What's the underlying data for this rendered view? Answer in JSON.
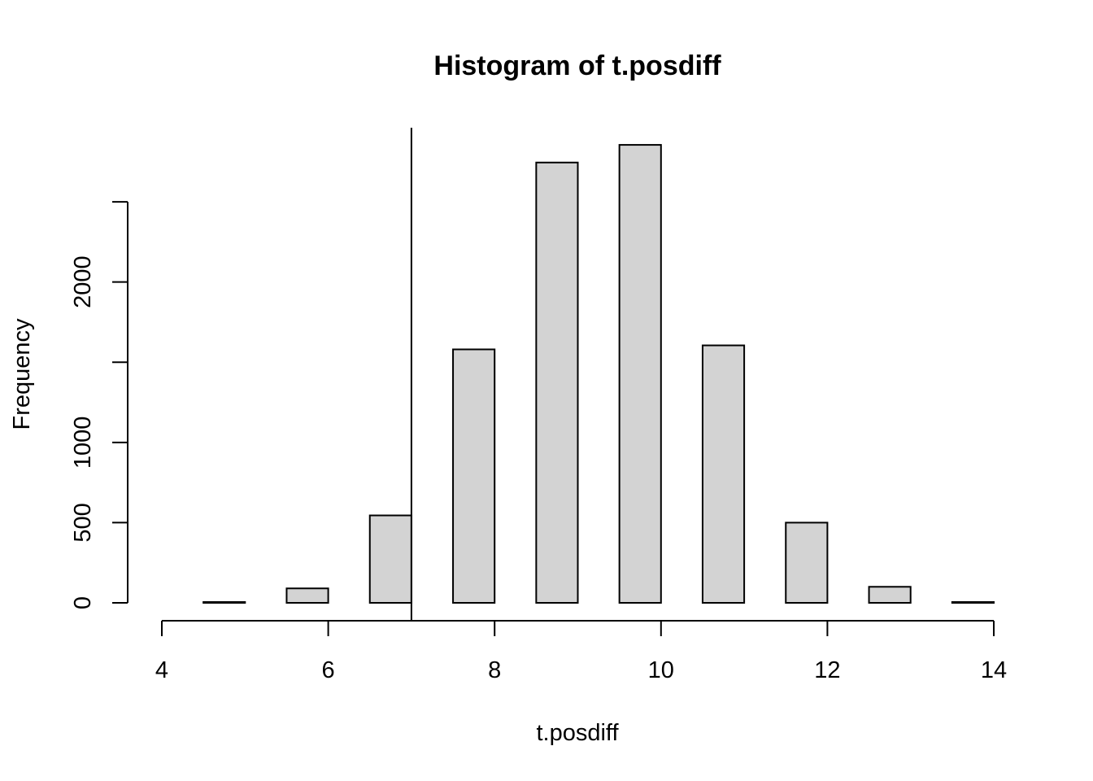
{
  "chart_data": {
    "type": "bar",
    "title": "Histogram of t.posdiff",
    "xlabel": "t.posdiff",
    "ylabel": "Frequency",
    "bin_width": 0.5,
    "bins": [
      {
        "start": 4.0,
        "end": 4.5,
        "count": 0
      },
      {
        "start": 4.5,
        "end": 5.0,
        "count": 5
      },
      {
        "start": 5.0,
        "end": 5.5,
        "count": 0
      },
      {
        "start": 5.5,
        "end": 6.0,
        "count": 90
      },
      {
        "start": 6.0,
        "end": 6.5,
        "count": 0
      },
      {
        "start": 6.5,
        "end": 7.0,
        "count": 545
      },
      {
        "start": 7.0,
        "end": 7.5,
        "count": 0
      },
      {
        "start": 7.5,
        "end": 8.0,
        "count": 1580
      },
      {
        "start": 8.0,
        "end": 8.5,
        "count": 0
      },
      {
        "start": 8.5,
        "end": 9.0,
        "count": 2745
      },
      {
        "start": 9.0,
        "end": 9.5,
        "count": 0
      },
      {
        "start": 9.5,
        "end": 10.0,
        "count": 2855
      },
      {
        "start": 10.0,
        "end": 10.5,
        "count": 0
      },
      {
        "start": 10.5,
        "end": 11.0,
        "count": 1605
      },
      {
        "start": 11.0,
        "end": 11.5,
        "count": 0
      },
      {
        "start": 11.5,
        "end": 12.0,
        "count": 500
      },
      {
        "start": 12.0,
        "end": 12.5,
        "count": 0
      },
      {
        "start": 12.5,
        "end": 13.0,
        "count": 100
      },
      {
        "start": 13.0,
        "end": 13.5,
        "count": 0
      },
      {
        "start": 13.5,
        "end": 14.0,
        "count": 5
      }
    ],
    "xlim": [
      4,
      14
    ],
    "ylim": [
      0,
      2900
    ],
    "x_ticks": [
      4,
      6,
      8,
      10,
      12,
      14
    ],
    "x_tick_labels": [
      "4",
      "6",
      "8",
      "10",
      "12",
      "14"
    ],
    "y_ticks": [
      0,
      500,
      1000,
      1500,
      2000,
      2500
    ],
    "y_tick_labels": [
      "0",
      "500",
      "1000",
      "",
      "2000",
      ""
    ],
    "vline_x": 7,
    "bar_fill": "#d3d3d3",
    "grid": false,
    "legend": "none"
  }
}
